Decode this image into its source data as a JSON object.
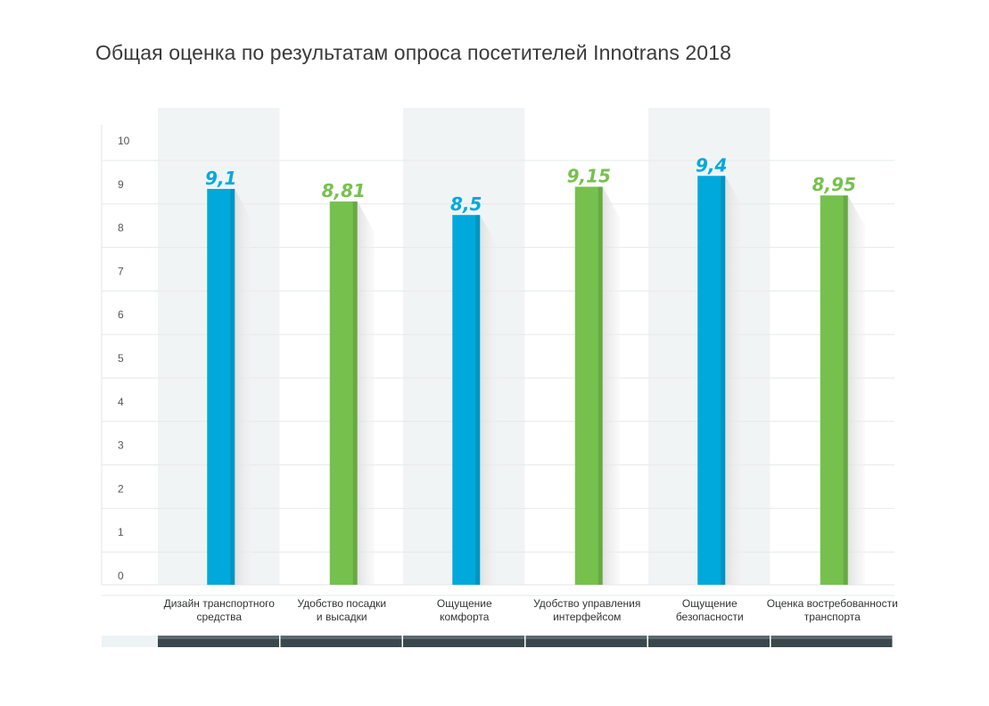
{
  "chart_data": {
    "type": "bar",
    "title": "Общая оценка по результатам опроса посетителей Innotrans 2018",
    "categories": [
      [
        "Дизайн транспортного",
        "средства"
      ],
      [
        "Удобство посадки",
        "и высадки"
      ],
      [
        "Ощущение",
        "комфорта"
      ],
      [
        "Удобство управления",
        "интерфейсом"
      ],
      [
        "Ощущение",
        "безопасности"
      ],
      [
        "Оценка востребованности",
        "транспорта"
      ]
    ],
    "values": [
      9.1,
      8.81,
      8.5,
      9.15,
      9.4,
      8.95
    ],
    "value_labels": [
      "9,1",
      "8,81",
      "8,5",
      "9,15",
      "9,4",
      "8,95"
    ],
    "yticks": [
      "0",
      "1",
      "2",
      "3",
      "4",
      "5",
      "6",
      "7",
      "8",
      "9",
      "10"
    ],
    "ylim": [
      0,
      10
    ],
    "grid": true,
    "colors": [
      "#00a9dc",
      "#76c14e",
      "#00a9dc",
      "#76c14e",
      "#00a9dc",
      "#76c14e"
    ],
    "shaded_bands": [
      0,
      2,
      4
    ]
  }
}
